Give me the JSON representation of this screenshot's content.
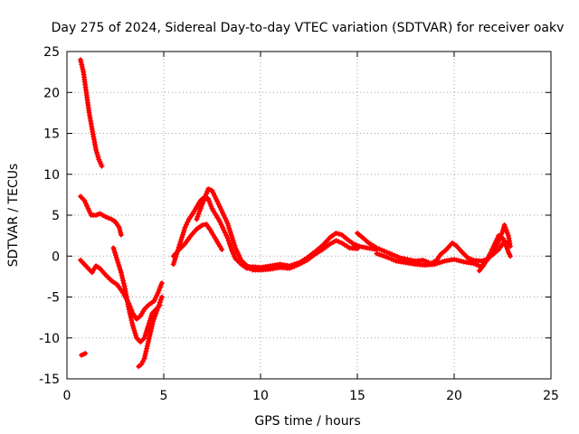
{
  "chart_data": {
    "type": "scatter",
    "title": "Day 275 of 2024, Sidereal Day-to-day VTEC variation (SDTVAR) for receiver oakv",
    "xlabel": "GPS time / hours",
    "ylabel": "SDTVAR / TECUs",
    "xlim": [
      0,
      25
    ],
    "ylim": [
      -15,
      25
    ],
    "x_ticks": [
      0,
      5,
      10,
      15,
      20,
      25
    ],
    "y_ticks": [
      -15,
      -10,
      -5,
      0,
      5,
      10,
      15,
      20,
      25
    ],
    "grid": true,
    "legend": "none",
    "marker": "plus",
    "color": "#ff0000",
    "series": [
      {
        "name": "track-1",
        "points": [
          [
            0.7,
            24
          ],
          [
            0.85,
            22.5
          ],
          [
            1.0,
            20
          ],
          [
            1.15,
            17.5
          ],
          [
            1.3,
            15.5
          ],
          [
            1.5,
            13
          ],
          [
            1.65,
            11.8
          ],
          [
            1.8,
            11
          ]
        ]
      },
      {
        "name": "track-2",
        "points": [
          [
            0.7,
            7.3
          ],
          [
            0.9,
            6.8
          ],
          [
            1.1,
            5.8
          ],
          [
            1.25,
            5.0
          ],
          [
            1.5,
            5.0
          ],
          [
            1.7,
            5.2
          ],
          [
            2.0,
            4.8
          ],
          [
            2.3,
            4.5
          ],
          [
            2.5,
            4.2
          ],
          [
            2.7,
            3.5
          ],
          [
            2.8,
            2.6
          ]
        ]
      },
      {
        "name": "track-3",
        "points": [
          [
            0.7,
            -0.5
          ],
          [
            0.9,
            -1.0
          ],
          [
            1.1,
            -1.5
          ],
          [
            1.3,
            -2.0
          ],
          [
            1.5,
            -1.2
          ],
          [
            1.7,
            -1.5
          ],
          [
            2.0,
            -2.3
          ],
          [
            2.3,
            -3.0
          ],
          [
            2.6,
            -3.5
          ],
          [
            2.9,
            -4.5
          ],
          [
            3.2,
            -5.8
          ],
          [
            3.4,
            -7.0
          ],
          [
            3.6,
            -7.7
          ],
          [
            3.8,
            -7.3
          ],
          [
            4.0,
            -6.5
          ],
          [
            4.2,
            -6.0
          ],
          [
            4.5,
            -5.5
          ],
          [
            4.7,
            -4.5
          ],
          [
            4.9,
            -3.3
          ]
        ]
      },
      {
        "name": "track-4",
        "points": [
          [
            2.4,
            1.0
          ],
          [
            2.6,
            -0.5
          ],
          [
            2.8,
            -2.0
          ],
          [
            3.0,
            -4.0
          ],
          [
            3.2,
            -6.5
          ],
          [
            3.4,
            -8.5
          ],
          [
            3.6,
            -10.0
          ],
          [
            3.8,
            -10.5
          ],
          [
            4.0,
            -10.0
          ],
          [
            4.2,
            -8.5
          ],
          [
            4.4,
            -7.0
          ],
          [
            4.6,
            -6.5
          ],
          [
            4.8,
            -6.0
          ]
        ]
      },
      {
        "name": "track-5",
        "points": [
          [
            3.7,
            -13.5
          ],
          [
            3.85,
            -13.2
          ],
          [
            4.0,
            -12.5
          ],
          [
            4.15,
            -11.0
          ],
          [
            4.3,
            -9.5
          ],
          [
            4.45,
            -8.0
          ],
          [
            4.6,
            -7.0
          ],
          [
            4.75,
            -6.0
          ],
          [
            4.9,
            -5.0
          ]
        ]
      },
      {
        "name": "track-6",
        "points": [
          [
            0.75,
            -12.1
          ],
          [
            0.85,
            -12.0
          ],
          [
            0.95,
            -11.9
          ]
        ]
      },
      {
        "name": "track-7",
        "points": [
          [
            5.5,
            -1.0
          ],
          [
            5.7,
            0.5
          ],
          [
            5.9,
            2.0
          ],
          [
            6.1,
            3.5
          ],
          [
            6.3,
            4.5
          ],
          [
            6.5,
            5.2
          ],
          [
            6.7,
            6.0
          ],
          [
            6.9,
            6.8
          ],
          [
            7.1,
            7.2
          ],
          [
            7.3,
            7.0
          ],
          [
            7.5,
            5.8
          ],
          [
            7.7,
            5.0
          ],
          [
            7.9,
            4.2
          ],
          [
            8.1,
            3.2
          ],
          [
            8.3,
            2.2
          ],
          [
            8.5,
            0.8
          ],
          [
            8.7,
            -0.3
          ],
          [
            9.0,
            -1.0
          ],
          [
            9.3,
            -1.5
          ],
          [
            9.6,
            -1.6
          ],
          [
            9.9,
            -1.4
          ]
        ]
      },
      {
        "name": "track-8",
        "points": [
          [
            5.5,
            0.0
          ],
          [
            5.8,
            0.8
          ],
          [
            6.1,
            1.5
          ],
          [
            6.4,
            2.5
          ],
          [
            6.7,
            3.3
          ],
          [
            7.0,
            3.8
          ],
          [
            7.2,
            3.9
          ],
          [
            7.4,
            3.2
          ],
          [
            7.7,
            2.0
          ],
          [
            7.9,
            1.2
          ],
          [
            8.0,
            0.8
          ]
        ]
      },
      {
        "name": "track-9",
        "points": [
          [
            6.7,
            4.5
          ],
          [
            6.9,
            5.8
          ],
          [
            7.1,
            7.0
          ],
          [
            7.3,
            8.2
          ],
          [
            7.5,
            8.0
          ],
          [
            7.7,
            7.0
          ],
          [
            7.9,
            6.0
          ],
          [
            8.1,
            5.0
          ],
          [
            8.3,
            4.0
          ],
          [
            8.5,
            2.5
          ],
          [
            8.7,
            1.0
          ],
          [
            9.0,
            -0.5
          ],
          [
            9.3,
            -1.2
          ],
          [
            9.6,
            -1.4
          ],
          [
            10.0,
            -1.5
          ]
        ]
      },
      {
        "name": "track-10",
        "points": [
          [
            9.6,
            -1.3
          ],
          [
            10.0,
            -1.4
          ],
          [
            10.5,
            -1.2
          ],
          [
            11.0,
            -1.0
          ],
          [
            11.5,
            -1.2
          ],
          [
            12.0,
            -0.8
          ],
          [
            12.4,
            -0.2
          ],
          [
            12.8,
            0.5
          ],
          [
            13.2,
            1.3
          ],
          [
            13.6,
            2.3
          ],
          [
            13.9,
            2.8
          ],
          [
            14.2,
            2.6
          ],
          [
            14.5,
            2.0
          ],
          [
            14.8,
            1.5
          ],
          [
            15.1,
            1.2
          ],
          [
            15.5,
            1.0
          ],
          [
            16.0,
            0.8
          ]
        ]
      },
      {
        "name": "track-11",
        "points": [
          [
            9.6,
            -1.7
          ],
          [
            10.0,
            -1.7
          ],
          [
            10.5,
            -1.6
          ],
          [
            11.0,
            -1.4
          ],
          [
            11.5,
            -1.5
          ],
          [
            12.0,
            -1.0
          ],
          [
            12.4,
            -0.5
          ],
          [
            12.8,
            0.2
          ],
          [
            13.2,
            0.8
          ],
          [
            13.6,
            1.5
          ],
          [
            13.9,
            1.9
          ],
          [
            14.2,
            1.6
          ],
          [
            14.6,
            1.0
          ],
          [
            15.0,
            0.9
          ]
        ]
      },
      {
        "name": "track-12",
        "points": [
          [
            15.0,
            2.8
          ],
          [
            15.3,
            2.2
          ],
          [
            15.6,
            1.6
          ],
          [
            16.0,
            1.0
          ],
          [
            16.4,
            0.6
          ],
          [
            16.8,
            0.2
          ],
          [
            17.2,
            -0.2
          ],
          [
            17.6,
            -0.4
          ],
          [
            18.0,
            -0.6
          ],
          [
            18.4,
            -0.5
          ],
          [
            18.8,
            -0.9
          ],
          [
            19.1,
            -0.5
          ],
          [
            19.3,
            0.2
          ],
          [
            19.6,
            0.8
          ],
          [
            19.9,
            1.6
          ],
          [
            20.1,
            1.3
          ],
          [
            20.4,
            0.5
          ],
          [
            20.7,
            -0.2
          ],
          [
            21.0,
            -0.5
          ],
          [
            21.4,
            -0.6
          ],
          [
            21.7,
            -0.4
          ],
          [
            22.0,
            0.5
          ],
          [
            22.3,
            1.8
          ],
          [
            22.5,
            3.0
          ],
          [
            22.6,
            3.8
          ],
          [
            22.8,
            2.5
          ],
          [
            22.9,
            1.2
          ]
        ]
      },
      {
        "name": "track-13",
        "points": [
          [
            16.0,
            0.3
          ],
          [
            16.5,
            -0.1
          ],
          [
            17.0,
            -0.6
          ],
          [
            17.5,
            -0.8
          ],
          [
            18.0,
            -1.0
          ],
          [
            18.5,
            -1.1
          ],
          [
            19.0,
            -1.0
          ],
          [
            19.5,
            -0.6
          ],
          [
            20.0,
            -0.4
          ],
          [
            20.5,
            -0.7
          ],
          [
            21.0,
            -0.9
          ],
          [
            21.4,
            -1.3
          ],
          [
            21.6,
            -0.8
          ],
          [
            21.8,
            -0.2
          ],
          [
            22.0,
            0.2
          ],
          [
            22.3,
            0.8
          ],
          [
            22.6,
            1.8
          ],
          [
            22.8,
            0.5
          ],
          [
            22.9,
            0.0
          ]
        ]
      },
      {
        "name": "track-14",
        "points": [
          [
            21.3,
            -1.8
          ],
          [
            21.5,
            -1.2
          ],
          [
            21.7,
            -0.4
          ],
          [
            21.9,
            0.5
          ],
          [
            22.1,
            1.5
          ],
          [
            22.3,
            2.5
          ],
          [
            22.5,
            2.2
          ],
          [
            22.7,
            1.5
          ]
        ]
      }
    ]
  }
}
